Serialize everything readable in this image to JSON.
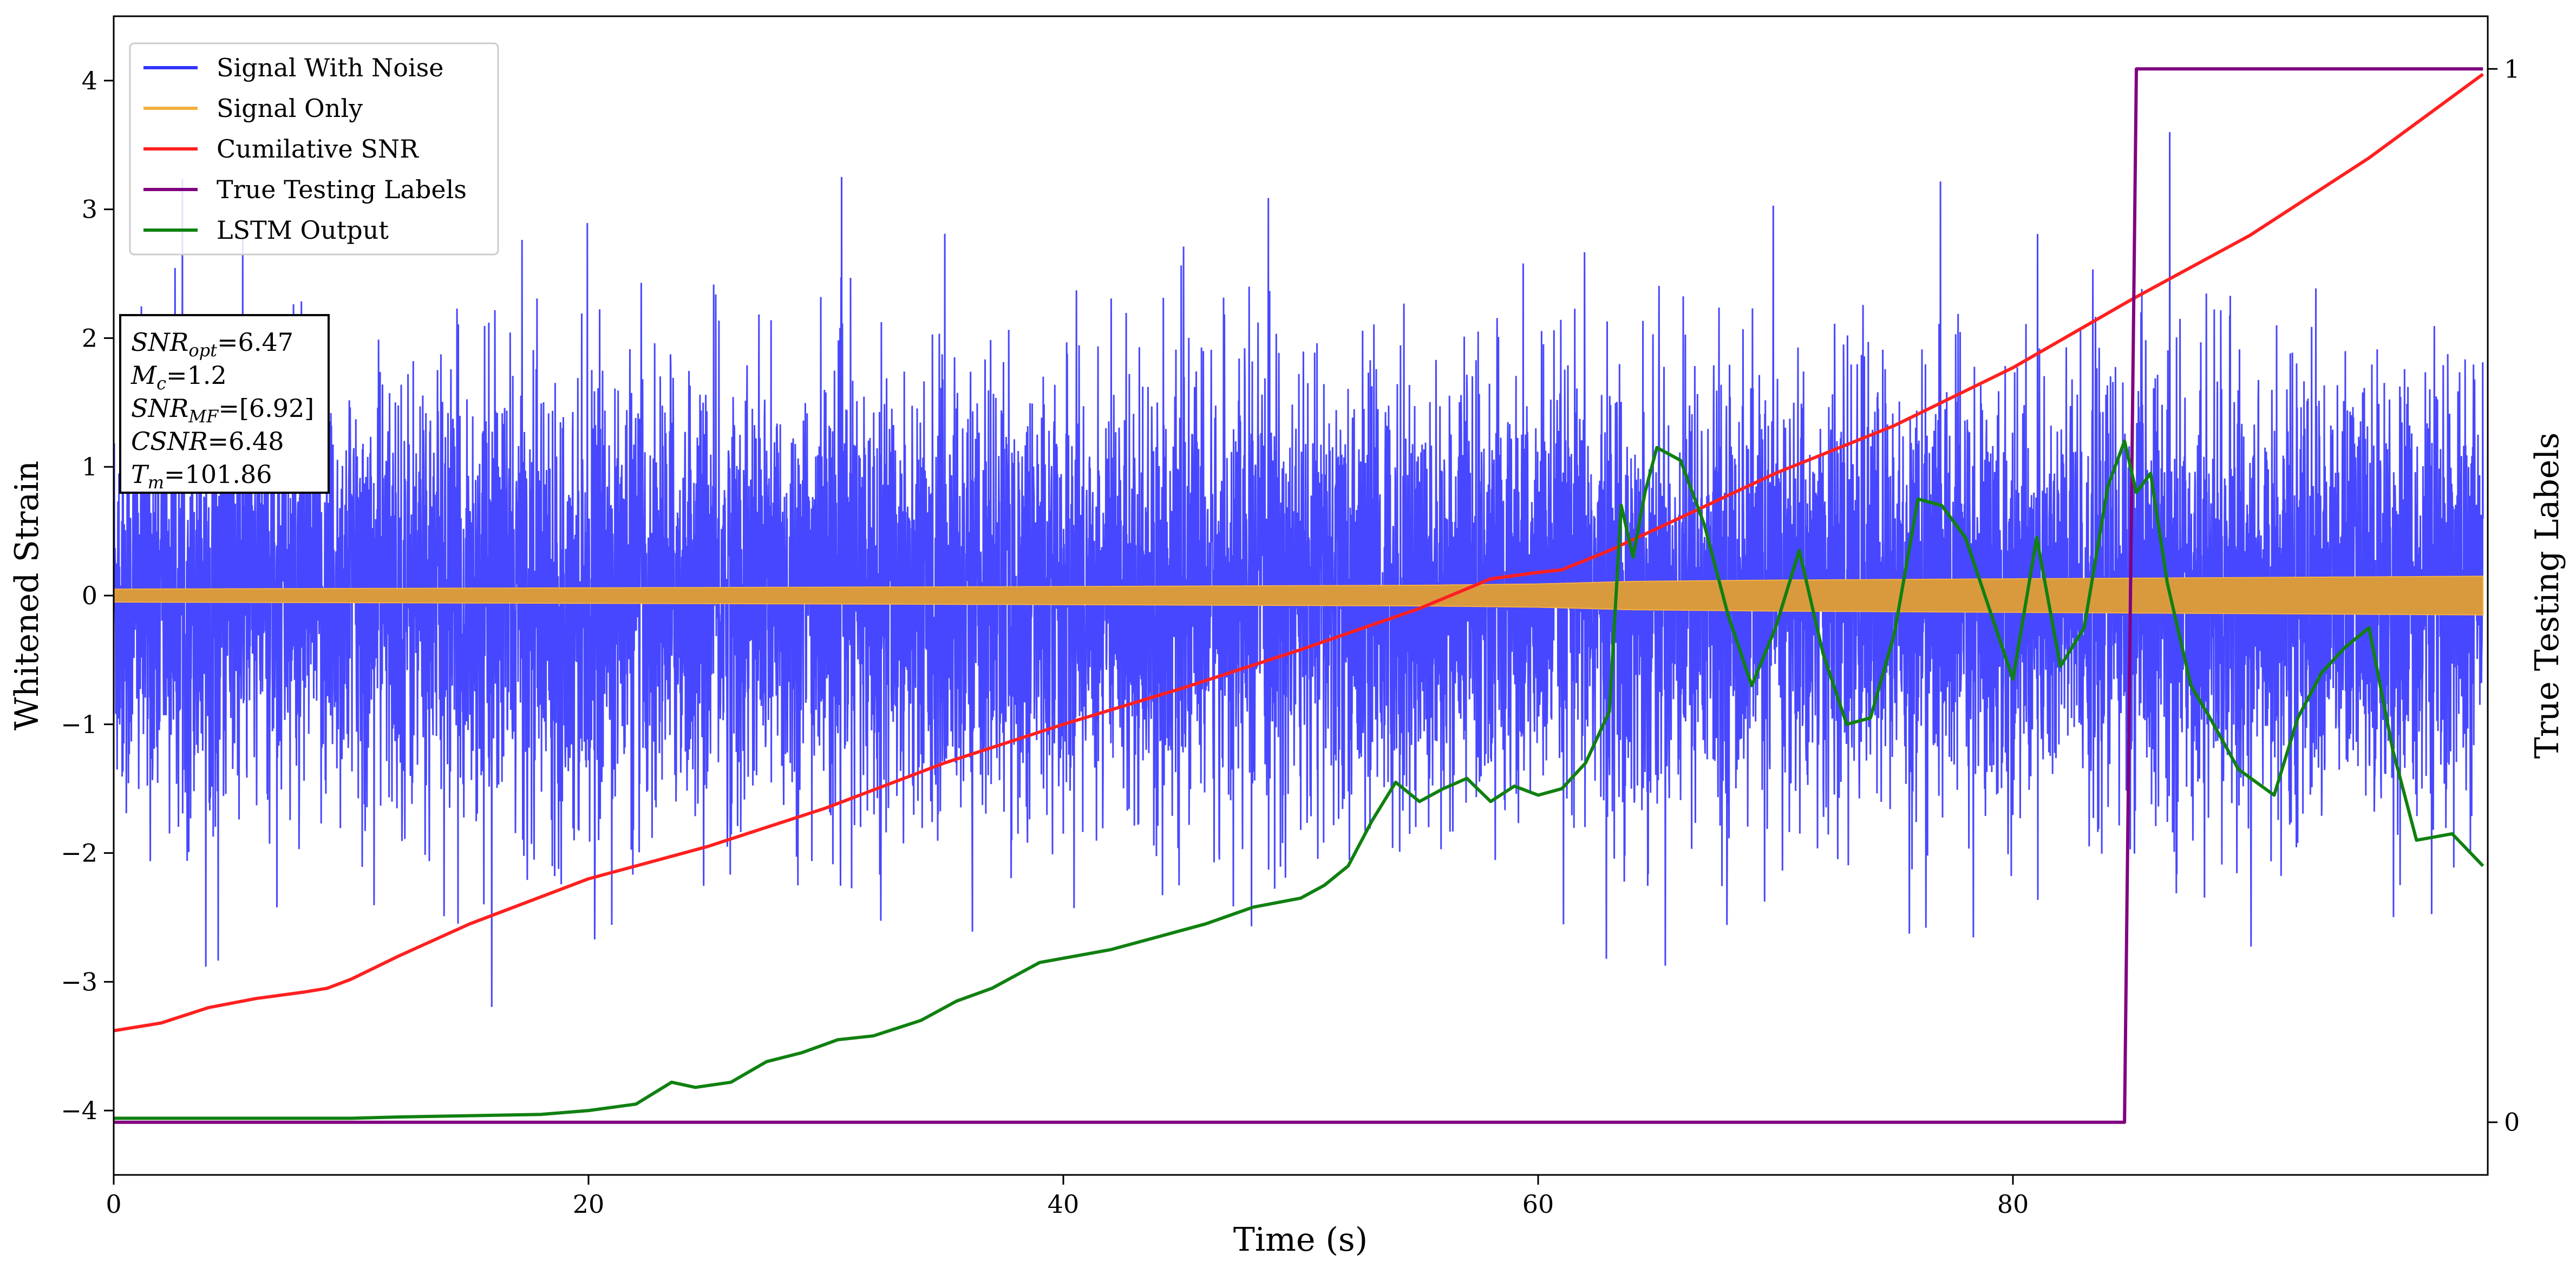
{
  "chart_data": {
    "type": "line",
    "xlabel": "Time (s)",
    "ylabel": "Whitened Strain",
    "ylabel_right": "True Testing Labels",
    "xlim": [
      0,
      100
    ],
    "ylim": [
      -4.5,
      4.5
    ],
    "ylim_right": [
      -0.05,
      1.05
    ],
    "x_ticks": [
      0,
      20,
      40,
      60,
      80
    ],
    "x_tick_labels": [
      "0",
      "20",
      "40",
      "60",
      "80"
    ],
    "y_ticks": [
      -4,
      -3,
      -2,
      -1,
      0,
      1,
      2,
      3,
      4
    ],
    "y_tick_labels": [
      "−4",
      "−3",
      "−2",
      "−1",
      "0",
      "1",
      "2",
      "3",
      "4"
    ],
    "y_right_ticks": [
      0,
      1
    ],
    "y_right_tick_labels": [
      "0",
      "1"
    ],
    "grid": false,
    "legend_position": "top-left",
    "annotation": {
      "lines": [
        {
          "var": "SNR",
          "sub": "opt",
          "value": "=6.47"
        },
        {
          "var": "M",
          "sub": "c",
          "value": "=1.2"
        },
        {
          "var": "SNR",
          "sub": "MF",
          "value": "=[6.92]"
        },
        {
          "var": "CSNR",
          "sub": "",
          "value": "=6.48"
        },
        {
          "var": "T",
          "sub": "m",
          "value": "=101.86"
        }
      ]
    },
    "series": [
      {
        "name": "Signal With Noise",
        "color": "#3333ff",
        "axis": "left",
        "style": "noise",
        "noise_std": 0.85,
        "noise_peak": 3.6,
        "x_range": [
          0,
          99.8
        ]
      },
      {
        "name": "Signal Only",
        "color": "#f5b041",
        "axis": "left",
        "style": "band",
        "x": [
          0,
          20,
          40,
          55,
          60,
          64,
          70,
          80,
          90,
          99.8
        ],
        "amplitude": [
          0.05,
          0.06,
          0.07,
          0.08,
          0.09,
          0.11,
          0.12,
          0.13,
          0.14,
          0.15
        ]
      },
      {
        "name": "Cumilative SNR",
        "color": "#ff2020",
        "axis": "left",
        "x": [
          0,
          2,
          4,
          6,
          8,
          9,
          10,
          12,
          15,
          20,
          25,
          30,
          35,
          40,
          45,
          50,
          55,
          58,
          60,
          61,
          63,
          65,
          70,
          75,
          80,
          85,
          90,
          95,
          99.8
        ],
        "y": [
          -3.38,
          -3.32,
          -3.2,
          -3.13,
          -3.08,
          -3.05,
          -2.98,
          -2.8,
          -2.55,
          -2.2,
          -1.95,
          -1.65,
          -1.3,
          -1.0,
          -0.72,
          -0.42,
          -0.1,
          0.13,
          0.18,
          0.2,
          0.35,
          0.52,
          0.95,
          1.32,
          1.77,
          2.3,
          2.8,
          3.4,
          4.05
        ]
      },
      {
        "name": "True Testing Labels",
        "color": "#800080",
        "axis": "right",
        "x": [
          0,
          84.7,
          85.2,
          99.8
        ],
        "y": [
          0,
          0,
          1,
          1
        ]
      },
      {
        "name": "LSTM Output",
        "color": "#108010",
        "axis": "left",
        "x": [
          0,
          10,
          12,
          15,
          18,
          20,
          22,
          23.5,
          24.5,
          26,
          27.5,
          29,
          30.5,
          32,
          34,
          35.5,
          37,
          39,
          40.5,
          42,
          44,
          46,
          48,
          50,
          51,
          52,
          53,
          54,
          55,
          56,
          57,
          58,
          59,
          60,
          61,
          62,
          63,
          63.5,
          64,
          64.5,
          65,
          66,
          67,
          68,
          69,
          70,
          71,
          72,
          73,
          74,
          75,
          76,
          77,
          78,
          79,
          80,
          81,
          82,
          83,
          84,
          84.7,
          85.2,
          85.8,
          86.5,
          87.5,
          88.3,
          89.5,
          91,
          92,
          93,
          94,
          95,
          96,
          97,
          98.5,
          99.8
        ],
        "y": [
          -4.06,
          -4.06,
          -4.05,
          -4.04,
          -4.03,
          -4.0,
          -3.95,
          -3.78,
          -3.82,
          -3.78,
          -3.62,
          -3.55,
          -3.45,
          -3.42,
          -3.3,
          -3.15,
          -3.05,
          -2.85,
          -2.8,
          -2.75,
          -2.65,
          -2.55,
          -2.42,
          -2.35,
          -2.25,
          -2.1,
          -1.75,
          -1.45,
          -1.6,
          -1.5,
          -1.42,
          -1.6,
          -1.48,
          -1.55,
          -1.5,
          -1.3,
          -0.9,
          0.7,
          0.3,
          0.8,
          1.15,
          1.05,
          0.55,
          -0.15,
          -0.7,
          -0.25,
          0.35,
          -0.45,
          -1.0,
          -0.95,
          -0.3,
          0.75,
          0.7,
          0.45,
          -0.1,
          -0.65,
          0.45,
          -0.55,
          -0.25,
          0.85,
          1.2,
          0.8,
          0.95,
          0.1,
          -0.7,
          -0.95,
          -1.35,
          -1.55,
          -0.95,
          -0.6,
          -0.4,
          -0.25,
          -1.2,
          -1.9,
          -1.85,
          -2.1
        ]
      }
    ]
  }
}
